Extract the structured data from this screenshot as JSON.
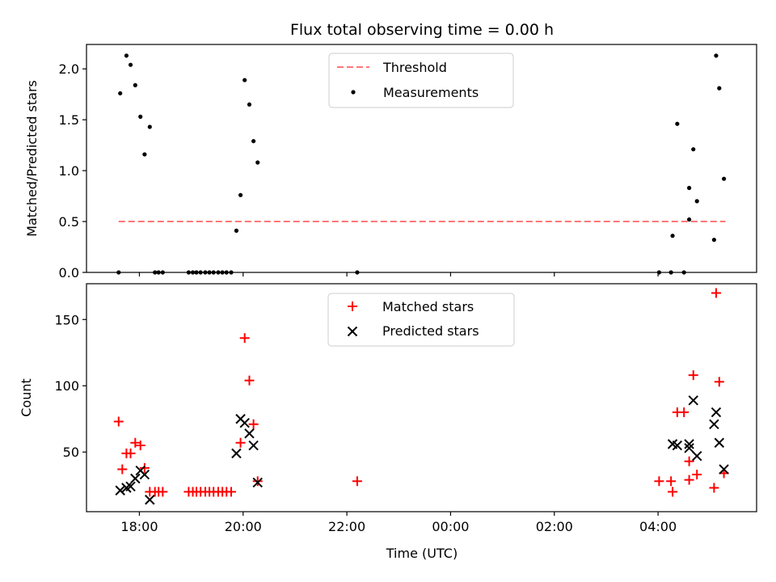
{
  "figure": {
    "title": "Flux total observing time = 0.00 h",
    "xlabel": "Time (UTC)",
    "x_range_hours": [
      16.98,
      29.9
    ],
    "x_ticks": [
      {
        "value": 18,
        "label": "18:00"
      },
      {
        "value": 20,
        "label": "20:00"
      },
      {
        "value": 22,
        "label": "22:00"
      },
      {
        "value": 24,
        "label": "00:00"
      },
      {
        "value": 26,
        "label": "02:00"
      },
      {
        "value": 28,
        "label": "04:00"
      }
    ]
  },
  "chart_data": [
    {
      "type": "scatter",
      "panel": "top",
      "ylabel": "Matched/Predicted stars",
      "ylim": [
        0,
        2.24
      ],
      "y_ticks": [
        0.0,
        0.5,
        1.0,
        1.5,
        2.0
      ],
      "y_tick_labels": [
        "0.0",
        "0.5",
        "1.0",
        "1.5",
        "2.0"
      ],
      "legend_position": "top-center",
      "threshold": {
        "name": "Threshold",
        "value": 0.5,
        "x_start": 17.6,
        "x_end": 29.3,
        "color": "#ff7777",
        "style": "dashed"
      },
      "series": [
        {
          "name": "Measurements",
          "marker": "dot",
          "color": "#000000",
          "points": [
            [
              17.63,
              1.76
            ],
            [
              17.75,
              2.13
            ],
            [
              17.83,
              2.04
            ],
            [
              17.92,
              1.84
            ],
            [
              18.02,
              1.53
            ],
            [
              18.1,
              1.16
            ],
            [
              18.2,
              1.43
            ],
            [
              17.6,
              0.0
            ],
            [
              18.3,
              0.0
            ],
            [
              18.37,
              0.0
            ],
            [
              18.45,
              0.0
            ],
            [
              18.95,
              0.0
            ],
            [
              19.03,
              0.0
            ],
            [
              19.1,
              0.0
            ],
            [
              19.18,
              0.0
            ],
            [
              19.27,
              0.0
            ],
            [
              19.35,
              0.0
            ],
            [
              19.43,
              0.0
            ],
            [
              19.52,
              0.0
            ],
            [
              19.6,
              0.0
            ],
            [
              19.68,
              0.0
            ],
            [
              19.77,
              0.0
            ],
            [
              19.87,
              0.41
            ],
            [
              19.95,
              0.76
            ],
            [
              20.03,
              1.89
            ],
            [
              20.12,
              1.65
            ],
            [
              20.2,
              1.29
            ],
            [
              20.28,
              1.08
            ],
            [
              22.2,
              0.0
            ],
            [
              28.02,
              0.0
            ],
            [
              28.25,
              0.0
            ],
            [
              28.5,
              0.0
            ],
            [
              28.28,
              0.36
            ],
            [
              28.37,
              1.46
            ],
            [
              28.6,
              0.83
            ],
            [
              28.6,
              0.52
            ],
            [
              28.68,
              1.21
            ],
            [
              28.75,
              0.7
            ],
            [
              29.08,
              0.32
            ],
            [
              29.12,
              2.13
            ],
            [
              29.18,
              1.81
            ],
            [
              29.27,
              0.92
            ]
          ]
        }
      ]
    },
    {
      "type": "scatter",
      "panel": "bottom",
      "ylabel": "Count",
      "ylim": [
        5,
        177
      ],
      "y_ticks": [
        50,
        100,
        150
      ],
      "y_tick_labels": [
        "50",
        "100",
        "150"
      ],
      "legend_position": "top-center",
      "series": [
        {
          "name": "Matched stars",
          "marker": "plus",
          "color": "#ff0000",
          "points": [
            [
              17.6,
              73
            ],
            [
              17.67,
              37
            ],
            [
              17.75,
              49
            ],
            [
              17.83,
              49
            ],
            [
              17.92,
              57
            ],
            [
              18.02,
              55
            ],
            [
              18.1,
              38
            ],
            [
              18.2,
              20
            ],
            [
              18.3,
              20
            ],
            [
              18.37,
              20
            ],
            [
              18.45,
              20
            ],
            [
              18.95,
              20
            ],
            [
              19.03,
              20
            ],
            [
              19.1,
              20
            ],
            [
              19.18,
              20
            ],
            [
              19.27,
              20
            ],
            [
              19.35,
              20
            ],
            [
              19.43,
              20
            ],
            [
              19.52,
              20
            ],
            [
              19.6,
              20
            ],
            [
              19.68,
              20
            ],
            [
              19.77,
              20
            ],
            [
              19.95,
              57
            ],
            [
              20.03,
              136
            ],
            [
              20.12,
              104
            ],
            [
              20.2,
              71
            ],
            [
              20.28,
              28
            ],
            [
              22.2,
              28
            ],
            [
              28.02,
              28
            ],
            [
              28.25,
              28
            ],
            [
              28.28,
              20
            ],
            [
              28.37,
              80
            ],
            [
              28.5,
              80
            ],
            [
              28.6,
              29
            ],
            [
              28.6,
              43
            ],
            [
              28.68,
              108
            ],
            [
              28.75,
              33
            ],
            [
              29.08,
              23
            ],
            [
              29.12,
              170
            ],
            [
              29.18,
              103
            ],
            [
              29.27,
              34
            ]
          ]
        },
        {
          "name": "Predicted stars",
          "marker": "x",
          "color": "#000000",
          "points": [
            [
              17.63,
              21
            ],
            [
              17.75,
              23
            ],
            [
              17.83,
              24
            ],
            [
              17.92,
              30
            ],
            [
              18.02,
              36
            ],
            [
              18.1,
              33
            ],
            [
              18.2,
              14
            ],
            [
              19.87,
              49
            ],
            [
              19.95,
              75
            ],
            [
              20.03,
              72
            ],
            [
              20.12,
              64
            ],
            [
              20.2,
              55
            ],
            [
              20.28,
              27
            ],
            [
              28.28,
              56
            ],
            [
              28.37,
              55
            ],
            [
              28.6,
              56
            ],
            [
              28.6,
              53
            ],
            [
              28.68,
              89
            ],
            [
              28.75,
              47
            ],
            [
              29.08,
              71
            ],
            [
              29.12,
              80
            ],
            [
              29.18,
              57
            ],
            [
              29.27,
              37
            ]
          ]
        }
      ]
    }
  ]
}
